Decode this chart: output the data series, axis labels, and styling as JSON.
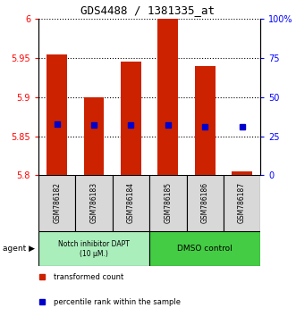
{
  "title": "GDS4488 / 1381335_at",
  "samples": [
    "GSM786182",
    "GSM786183",
    "GSM786184",
    "GSM786185",
    "GSM786186",
    "GSM786187"
  ],
  "bar_bottom": 5.8,
  "bar_tops": [
    5.955,
    5.9,
    5.945,
    6.0,
    5.94,
    5.805
  ],
  "percentile_values": [
    5.865,
    5.864,
    5.864,
    5.864,
    5.862,
    5.862
  ],
  "ylim": [
    5.8,
    6.0
  ],
  "yticks_left": [
    5.8,
    5.85,
    5.9,
    5.95,
    6.0
  ],
  "ytick_labels_left": [
    "5.8",
    "5.85",
    "5.9",
    "5.95",
    "6"
  ],
  "ytick_labels_right": [
    "0",
    "25",
    "50",
    "75",
    "100%"
  ],
  "bar_color": "#cc2200",
  "percentile_color": "#0000cc",
  "group0_label": "Notch inhibitor DAPT\n(10 μM.)",
  "group0_color": "#aaeebb",
  "group1_label": "DMSO control",
  "group1_color": "#44cc44",
  "legend_bar_label": "transformed count",
  "legend_pct_label": "percentile rank within the sample",
  "background_color": "#ffffff",
  "bar_width": 0.55
}
